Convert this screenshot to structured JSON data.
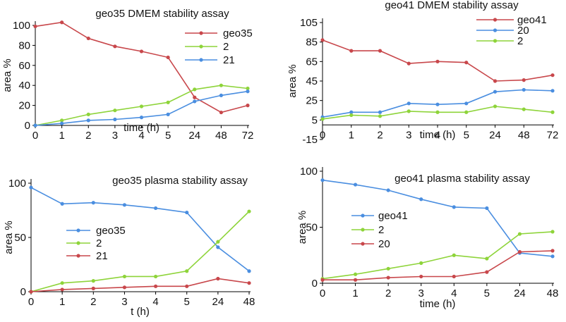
{
  "colors": {
    "red": "#c8474b",
    "green": "#8ed43a",
    "blue": "#4a8ee0"
  },
  "chart_data": [
    {
      "type": "line",
      "title": "geo35 DMEM stability assay",
      "xlabel": "time (h)",
      "ylabel": "area %",
      "categories": [
        "0",
        "1",
        "2",
        "3",
        "4",
        "5",
        "24",
        "48",
        "72"
      ],
      "ylim": [
        0,
        100
      ],
      "yticks": [
        0,
        20,
        40,
        60,
        80,
        100
      ],
      "legend": "top-right",
      "series": [
        {
          "name": "geo35",
          "color": "red",
          "values": [
            99,
            103,
            87,
            79,
            74,
            68,
            28,
            13,
            20
          ]
        },
        {
          "name": "2",
          "color": "green",
          "values": [
            0,
            5,
            11,
            15,
            19,
            23,
            36,
            40,
            37
          ]
        },
        {
          "name": "21",
          "color": "blue",
          "values": [
            0,
            2,
            5,
            6,
            8,
            11,
            24,
            30,
            34
          ]
        }
      ]
    },
    {
      "type": "line",
      "title": "geo41 DMEM stability assay",
      "xlabel": "time (h)",
      "ylabel": "area %",
      "categories": [
        "0",
        "1",
        "2",
        "3",
        "4",
        "5",
        "24",
        "48",
        "72"
      ],
      "ylim": [
        -15,
        105
      ],
      "yticks": [
        -15,
        5,
        25,
        45,
        65,
        85,
        105
      ],
      "legend": "top-right",
      "series": [
        {
          "name": "geo41",
          "color": "red",
          "values": [
            87,
            76,
            76,
            63,
            65,
            64,
            45,
            46,
            51
          ]
        },
        {
          "name": "20",
          "color": "blue",
          "values": [
            8,
            13,
            13,
            22,
            21,
            22,
            34,
            36,
            35
          ]
        },
        {
          "name": "2",
          "color": "green",
          "values": [
            6,
            10,
            9,
            14,
            13,
            13,
            19,
            16,
            13
          ]
        }
      ]
    },
    {
      "type": "line",
      "title": "geo35 plasma stability assay",
      "xlabel": "t (h)",
      "ylabel": "area %",
      "categories": [
        "0",
        "1",
        "2",
        "3",
        "4",
        "5",
        "24",
        "48"
      ],
      "ylim": [
        0,
        100
      ],
      "yticks": [
        0,
        50,
        100
      ],
      "legend": "center-left",
      "series": [
        {
          "name": "geo35",
          "color": "blue",
          "values": [
            96,
            81,
            82,
            80,
            77,
            73,
            41,
            19
          ]
        },
        {
          "name": "2",
          "color": "green",
          "values": [
            0,
            8,
            10,
            14,
            14,
            19,
            46,
            74
          ]
        },
        {
          "name": "21",
          "color": "red",
          "values": [
            0,
            2,
            3,
            4,
            5,
            5,
            12,
            8
          ]
        }
      ]
    },
    {
      "type": "line",
      "title": "geo41 plasma stability assay",
      "xlabel": "time (h)",
      "ylabel": "area %",
      "categories": [
        "0",
        "1",
        "2",
        "3",
        "4",
        "5",
        "24",
        "48"
      ],
      "ylim": [
        0,
        100
      ],
      "yticks": [
        0,
        50,
        100
      ],
      "legend": "center-left",
      "series": [
        {
          "name": "geo41",
          "color": "blue",
          "values": [
            92,
            88,
            83,
            75,
            68,
            67,
            27,
            24
          ]
        },
        {
          "name": "2",
          "color": "green",
          "values": [
            4,
            8,
            13,
            18,
            25,
            22,
            44,
            46
          ]
        },
        {
          "name": "20",
          "color": "red",
          "values": [
            3,
            3,
            5,
            6,
            6,
            10,
            28,
            29
          ]
        }
      ]
    }
  ]
}
